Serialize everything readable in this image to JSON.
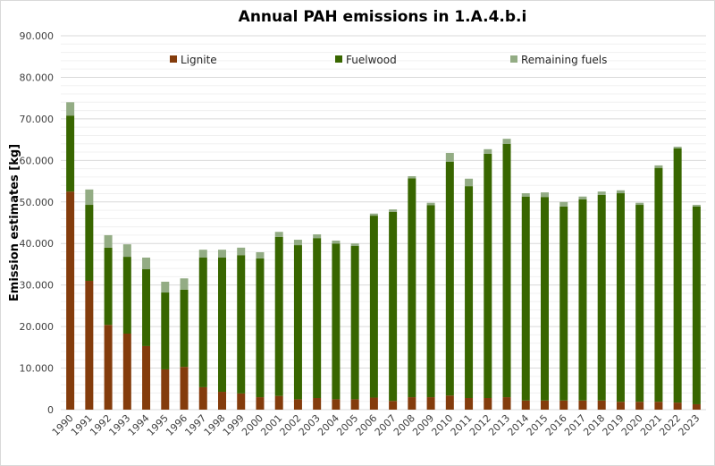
{
  "chart_data": {
    "type": "bar",
    "stacked": true,
    "title": "Annual PAH emissions in 1.A.4.b.i",
    "xlabel": "",
    "ylabel": "Emission estimates [kg]",
    "ylim": [
      0,
      90000
    ],
    "yticks": [
      0,
      10000,
      20000,
      30000,
      40000,
      50000,
      60000,
      70000,
      80000,
      90000
    ],
    "ytick_labels": [
      "0",
      "10.000",
      "20.000",
      "30.000",
      "40.000",
      "50.000",
      "60.000",
      "70.000",
      "80.000",
      "90.000"
    ],
    "grid": true,
    "legend_position": "top",
    "categories": [
      "1990",
      "1991",
      "1992",
      "1993",
      "1994",
      "1995",
      "1996",
      "1997",
      "1998",
      "1999",
      "2000",
      "2001",
      "2002",
      "2003",
      "2004",
      "2005",
      "2006",
      "2007",
      "2008",
      "2009",
      "2010",
      "2011",
      "2012",
      "2013",
      "2014",
      "2015",
      "2016",
      "2017",
      "2018",
      "2019",
      "2020",
      "2021",
      "2022",
      "2023"
    ],
    "series": [
      {
        "name": "Lignite",
        "color": "#843c0c",
        "values": [
          52500,
          31000,
          20400,
          18300,
          15300,
          9700,
          10300,
          5400,
          4300,
          3900,
          3000,
          3300,
          2500,
          2800,
          2500,
          2500,
          2900,
          2100,
          3000,
          3000,
          3400,
          2800,
          2800,
          3000,
          2200,
          2200,
          2200,
          2200,
          2200,
          1900,
          1900,
          1900,
          1700,
          1300
        ]
      },
      {
        "name": "Fuelwood",
        "color": "#386600",
        "values": [
          18300,
          18300,
          18600,
          18500,
          18500,
          18500,
          18600,
          31200,
          32300,
          33300,
          33400,
          38300,
          37100,
          38500,
          37500,
          36900,
          43800,
          45500,
          52700,
          46200,
          56300,
          51000,
          58800,
          61000,
          49100,
          49000,
          46700,
          48400,
          49500,
          50200,
          47400,
          56300,
          61200,
          47600
        ]
      },
      {
        "name": "Remaining fuels",
        "color": "#93ac84",
        "values": [
          3200,
          3700,
          3000,
          3000,
          2800,
          2600,
          2700,
          1900,
          1900,
          1800,
          1500,
          1200,
          1300,
          900,
          700,
          600,
          500,
          600,
          500,
          600,
          2100,
          1800,
          1100,
          1200,
          800,
          1100,
          1100,
          700,
          800,
          700,
          500,
          600,
          400,
          400
        ]
      }
    ]
  }
}
